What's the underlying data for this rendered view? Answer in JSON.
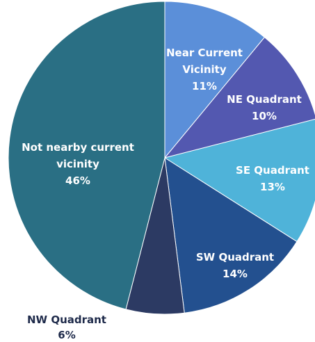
{
  "chart_data": {
    "type": "pie",
    "categories": [
      "Near Current Vicinity",
      "NE Quadrant",
      "SE Quadrant",
      "SW Quadrant",
      "NW Quadrant",
      "Not nearby current vicinity"
    ],
    "values": [
      11,
      10,
      13,
      14,
      6,
      46
    ],
    "value_labels": [
      "11%",
      "10%",
      "13%",
      "14%",
      "6%",
      "46%"
    ],
    "colors": [
      "#5b8fd9",
      "#5358b0",
      "#4fb3d9",
      "#23508f",
      "#2c3a63",
      "#2a6f84"
    ]
  }
}
